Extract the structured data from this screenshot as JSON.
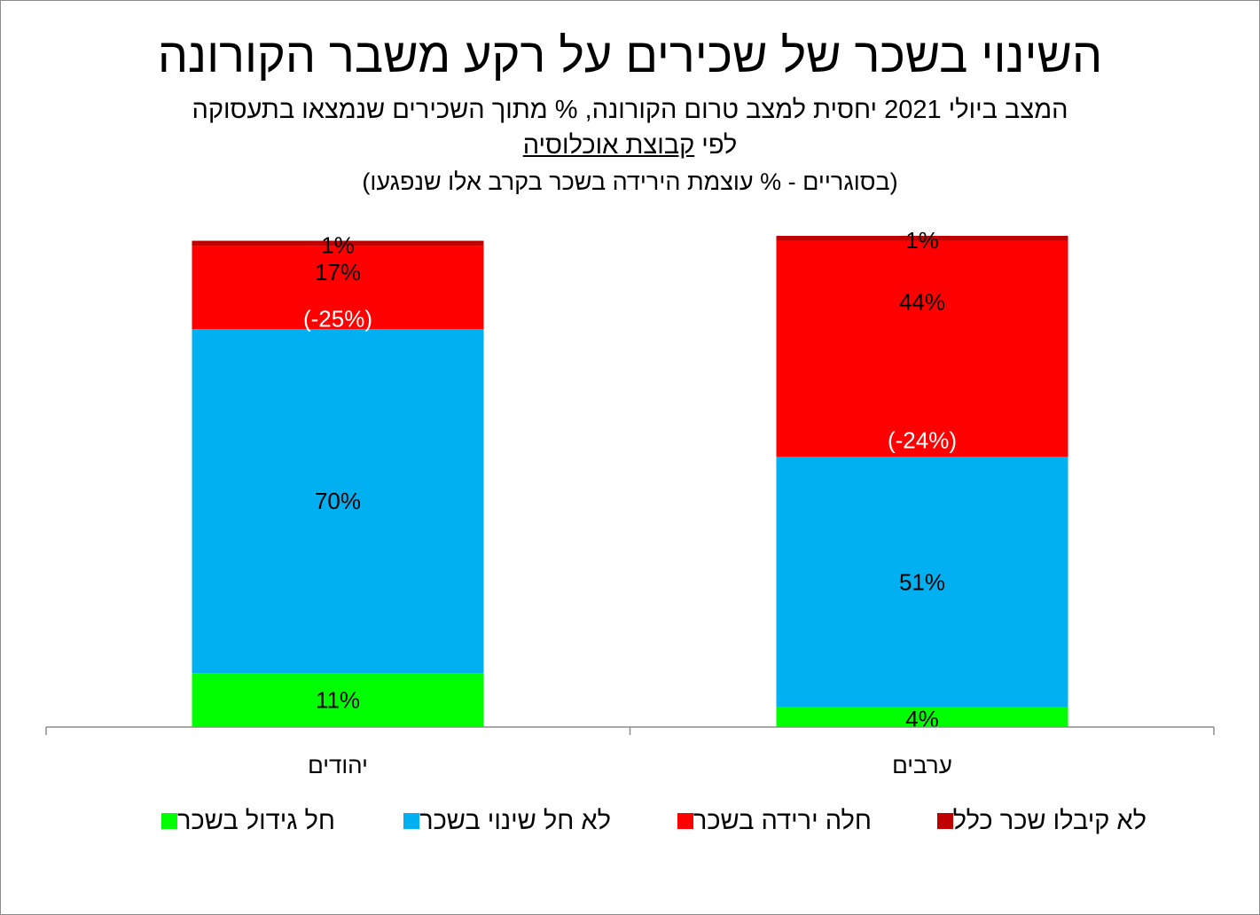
{
  "chart_data": {
    "type": "bar",
    "stacked": true,
    "title": "השינוי בשכר של שכירים על רקע משבר הקורונה",
    "subtitle_line1": "המצב ביולי 2021 יחסית למצב טרום הקורונה, % מתוך השכירים שנמצאו בתעסוקה",
    "subtitle_line2_prefix": "לפי",
    "subtitle_line2_underlined": "קבוצת אוכלוסיה",
    "subtitle_line3": "(בסוגריים - % עוצמת הירידה בשכר בקרב אלו שנפגעו)",
    "categories": [
      "יהודים",
      "ערבים"
    ],
    "series": [
      {
        "name": "חל גידול בשכר",
        "values": [
          11,
          4
        ],
        "labels": [
          "11%",
          "4%"
        ],
        "color": "#00ff00"
      },
      {
        "name": "לא חל שינוי בשכר",
        "values": [
          70,
          51
        ],
        "labels": [
          "70%",
          "51%"
        ],
        "color": "#00b0f0"
      },
      {
        "name": "חלה ירידה בשכר",
        "values": [
          17,
          44
        ],
        "labels": [
          "17%",
          "44%"
        ],
        "color": "#ff0000",
        "secondary_labels": [
          "(-25%)",
          "(-24%)"
        ]
      },
      {
        "name": "לא קיבלו שכר כלל",
        "values": [
          1,
          1
        ],
        "labels": [
          "1%",
          "1%"
        ],
        "color": "#c00000"
      }
    ],
    "ylim": [
      0,
      100
    ],
    "legend_position": "bottom",
    "grid": false
  }
}
